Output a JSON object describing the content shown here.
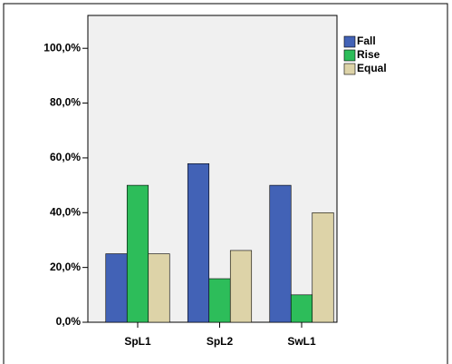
{
  "chart_data": {
    "type": "bar",
    "categories": [
      "SpL1",
      "SpL2",
      "SwL1"
    ],
    "series": [
      {
        "name": "Fall",
        "color": "#4262b6",
        "values": [
          25,
          57.9,
          50
        ]
      },
      {
        "name": "Rise",
        "color": "#2dbd5a",
        "values": [
          50,
          15.9,
          10
        ]
      },
      {
        "name": "Equal",
        "color": "#ddd3a8",
        "values": [
          25,
          26.2,
          40
        ]
      }
    ],
    "ylim": [
      0,
      112
    ],
    "yticks": [
      {
        "value": 0,
        "label": "0,0%"
      },
      {
        "value": 20,
        "label": "20,0%"
      },
      {
        "value": 40,
        "label": "40,0%"
      },
      {
        "value": 60,
        "label": "60,0%"
      },
      {
        "value": 80,
        "label": "80,0%"
      },
      {
        "value": 100,
        "label": "100,0%"
      }
    ],
    "grid": false,
    "legend": "right"
  }
}
